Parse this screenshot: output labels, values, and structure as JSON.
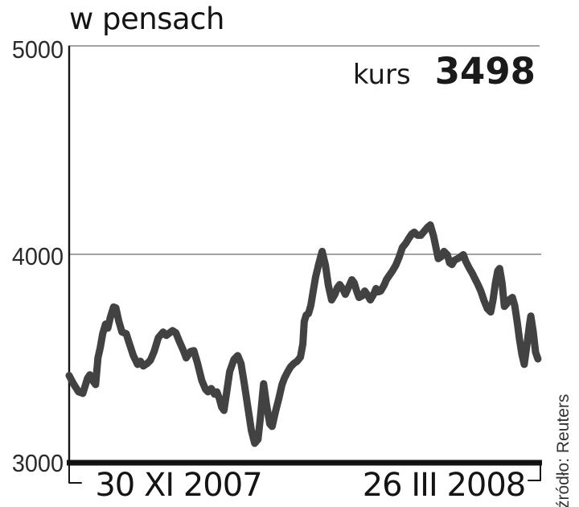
{
  "chart": {
    "title": "w pensach",
    "price_label": "kurs",
    "price_value": "3498",
    "source": "źródło: Reuters",
    "y_axis": {
      "ticks": [
        "5000",
        "4000",
        "3000"
      ]
    },
    "x_axis": {
      "ticks": [
        "30 XI 2007",
        "26 III 2008"
      ]
    }
  },
  "chart_data": {
    "type": "line",
    "title": "w pensach",
    "ylabel": "kurs w pensach",
    "ylim": [
      3000,
      5000
    ],
    "yticks": [
      3000,
      4000,
      5000
    ],
    "xticks": [
      {
        "label": "30 XI 2007",
        "pos": 0.23
      },
      {
        "label": "26 III 2008",
        "pos": 0.793
      }
    ],
    "annotation": {
      "label": "kurs",
      "value": 3498
    },
    "source": "źródło: Reuters",
    "legend": "none",
    "grid": "horizontal",
    "colors": {
      "line": "#424242",
      "grid": "#a2a2a2",
      "axis": "#151515"
    },
    "series": [
      {
        "name": "kurs",
        "points": [
          [
            0,
            3418
          ],
          [
            0.009,
            3379
          ],
          [
            0.02,
            3340
          ],
          [
            0.029,
            3333
          ],
          [
            0.039,
            3406
          ],
          [
            0.044,
            3422
          ],
          [
            0.051,
            3391
          ],
          [
            0.056,
            3375
          ],
          [
            0.061,
            3503
          ],
          [
            0.066,
            3553
          ],
          [
            0.071,
            3619
          ],
          [
            0.077,
            3665
          ],
          [
            0.082,
            3646
          ],
          [
            0.087,
            3696
          ],
          [
            0.094,
            3747
          ],
          [
            0.099,
            3743
          ],
          [
            0.105,
            3681
          ],
          [
            0.112,
            3627
          ],
          [
            0.121,
            3619
          ],
          [
            0.128,
            3569
          ],
          [
            0.136,
            3514
          ],
          [
            0.145,
            3472
          ],
          [
            0.151,
            3487
          ],
          [
            0.157,
            3464
          ],
          [
            0.165,
            3476
          ],
          [
            0.172,
            3491
          ],
          [
            0.18,
            3534
          ],
          [
            0.189,
            3600
          ],
          [
            0.199,
            3627
          ],
          [
            0.206,
            3611
          ],
          [
            0.213,
            3623
          ],
          [
            0.219,
            3634
          ],
          [
            0.226,
            3623
          ],
          [
            0.233,
            3584
          ],
          [
            0.242,
            3538
          ],
          [
            0.248,
            3503
          ],
          [
            0.257,
            3534
          ],
          [
            0.264,
            3538
          ],
          [
            0.272,
            3476
          ],
          [
            0.281,
            3395
          ],
          [
            0.289,
            3352
          ],
          [
            0.294,
            3340
          ],
          [
            0.301,
            3356
          ],
          [
            0.308,
            3329
          ],
          [
            0.313,
            3340
          ],
          [
            0.318,
            3309
          ],
          [
            0.323,
            3267
          ],
          [
            0.328,
            3251
          ],
          [
            0.333,
            3329
          ],
          [
            0.34,
            3437
          ],
          [
            0.349,
            3495
          ],
          [
            0.357,
            3514
          ],
          [
            0.364,
            3476
          ],
          [
            0.371,
            3379
          ],
          [
            0.379,
            3259
          ],
          [
            0.386,
            3155
          ],
          [
            0.393,
            3093
          ],
          [
            0.4,
            3112
          ],
          [
            0.405,
            3213
          ],
          [
            0.412,
            3379
          ],
          [
            0.418,
            3279
          ],
          [
            0.425,
            3186
          ],
          [
            0.43,
            3174
          ],
          [
            0.437,
            3244
          ],
          [
            0.444,
            3306
          ],
          [
            0.451,
            3375
          ],
          [
            0.456,
            3406
          ],
          [
            0.463,
            3437
          ],
          [
            0.469,
            3460
          ],
          [
            0.476,
            3476
          ],
          [
            0.483,
            3487
          ],
          [
            0.49,
            3507
          ],
          [
            0.495,
            3569
          ],
          [
            0.498,
            3677
          ],
          [
            0.502,
            3708
          ],
          [
            0.507,
            3716
          ],
          [
            0.512,
            3754
          ],
          [
            0.517,
            3824
          ],
          [
            0.522,
            3890
          ],
          [
            0.529,
            3956
          ],
          [
            0.536,
            4014
          ],
          [
            0.543,
            3948
          ],
          [
            0.549,
            3851
          ],
          [
            0.556,
            3781
          ],
          [
            0.563,
            3808
          ],
          [
            0.568,
            3839
          ],
          [
            0.573,
            3855
          ],
          [
            0.58,
            3832
          ],
          [
            0.585,
            3808
          ],
          [
            0.592,
            3843
          ],
          [
            0.599,
            3878
          ],
          [
            0.604,
            3863
          ],
          [
            0.609,
            3824
          ],
          [
            0.614,
            3793
          ],
          [
            0.621,
            3801
          ],
          [
            0.626,
            3824
          ],
          [
            0.633,
            3801
          ],
          [
            0.638,
            3781
          ],
          [
            0.645,
            3808
          ],
          [
            0.65,
            3836
          ],
          [
            0.655,
            3820
          ],
          [
            0.66,
            3824
          ],
          [
            0.667,
            3851
          ],
          [
            0.672,
            3878
          ],
          [
            0.679,
            3901
          ],
          [
            0.685,
            3921
          ],
          [
            0.692,
            3948
          ],
          [
            0.699,
            3986
          ],
          [
            0.706,
            4033
          ],
          [
            0.713,
            4052
          ],
          [
            0.719,
            4075
          ],
          [
            0.726,
            4098
          ],
          [
            0.731,
            4106
          ],
          [
            0.738,
            4091
          ],
          [
            0.745,
            4091
          ],
          [
            0.752,
            4110
          ],
          [
            0.759,
            4129
          ],
          [
            0.765,
            4141
          ],
          [
            0.772,
            4087
          ],
          [
            0.777,
            4033
          ],
          [
            0.782,
            3979
          ],
          [
            0.789,
            3990
          ],
          [
            0.794,
            4014
          ],
          [
            0.801,
            3998
          ],
          [
            0.806,
            3959
          ],
          [
            0.811,
            3951
          ],
          [
            0.816,
            3971
          ],
          [
            0.823,
            3979
          ],
          [
            0.828,
            3986
          ],
          [
            0.835,
            3998
          ],
          [
            0.84,
            3967
          ],
          [
            0.847,
            3936
          ],
          [
            0.854,
            3909
          ],
          [
            0.859,
            3886
          ],
          [
            0.866,
            3855
          ],
          [
            0.872,
            3824
          ],
          [
            0.879,
            3777
          ],
          [
            0.886,
            3739
          ],
          [
            0.893,
            3723
          ],
          [
            0.898,
            3781
          ],
          [
            0.903,
            3863
          ],
          [
            0.908,
            3921
          ],
          [
            0.912,
            3932
          ],
          [
            0.917,
            3863
          ],
          [
            0.922,
            3750
          ],
          [
            0.927,
            3762
          ],
          [
            0.932,
            3781
          ],
          [
            0.939,
            3793
          ],
          [
            0.944,
            3754
          ],
          [
            0.949,
            3677
          ],
          [
            0.954,
            3592
          ],
          [
            0.959,
            3522
          ],
          [
            0.964,
            3472
          ],
          [
            0.969,
            3553
          ],
          [
            0.975,
            3658
          ],
          [
            0.978,
            3704
          ],
          [
            0.983,
            3631
          ],
          [
            0.988,
            3530
          ],
          [
            0.993,
            3498
          ]
        ]
      }
    ]
  }
}
